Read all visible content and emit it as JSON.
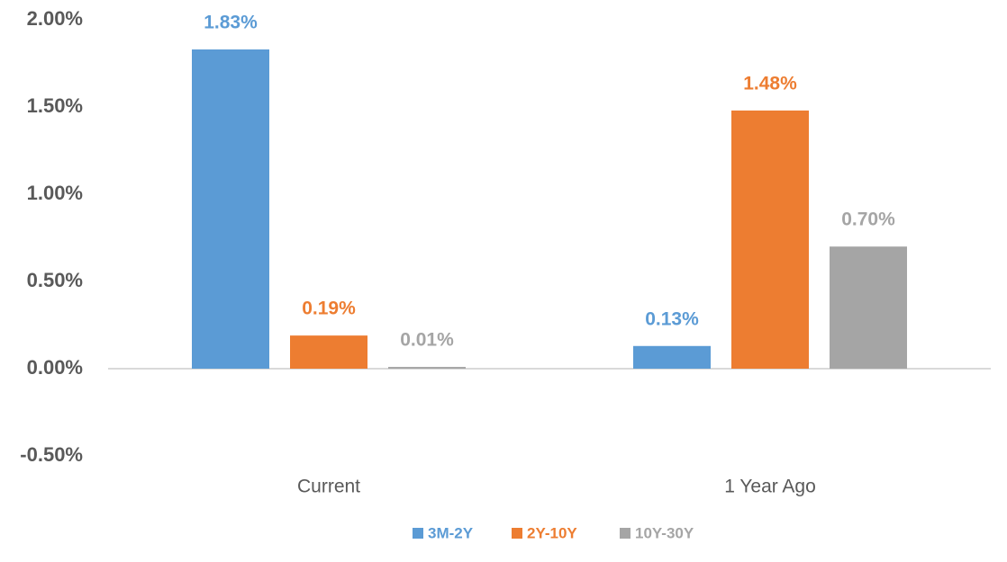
{
  "chart_data": {
    "type": "bar",
    "categories": [
      "Current",
      "1 Year Ago"
    ],
    "series": [
      {
        "name": "3M-2Y",
        "color": "#5b9bd5",
        "values": [
          1.83,
          0.13
        ],
        "value_labels": [
          "1.83%",
          "0.13%"
        ]
      },
      {
        "name": "2Y-10Y",
        "color": "#ed7d31",
        "values": [
          0.19,
          1.48
        ],
        "value_labels": [
          "0.19%",
          "1.48%"
        ]
      },
      {
        "name": "10Y-30Y",
        "color": "#a5a5a5",
        "values": [
          0.01,
          0.7
        ],
        "value_labels": [
          "0.01%",
          "0.70%"
        ]
      }
    ],
    "ylim": [
      -0.5,
      2.0
    ],
    "yticks": [
      {
        "value": -0.5,
        "label": "-0.50%"
      },
      {
        "value": 0,
        "label": "0.00%"
      },
      {
        "value": 0.5,
        "label": "0.50%"
      },
      {
        "value": 1.0,
        "label": "1.00%"
      },
      {
        "value": 1.5,
        "label": "1.50%"
      },
      {
        "value": 2.0,
        "label": "2.00%"
      }
    ],
    "grid": false,
    "legend": "bottom"
  }
}
